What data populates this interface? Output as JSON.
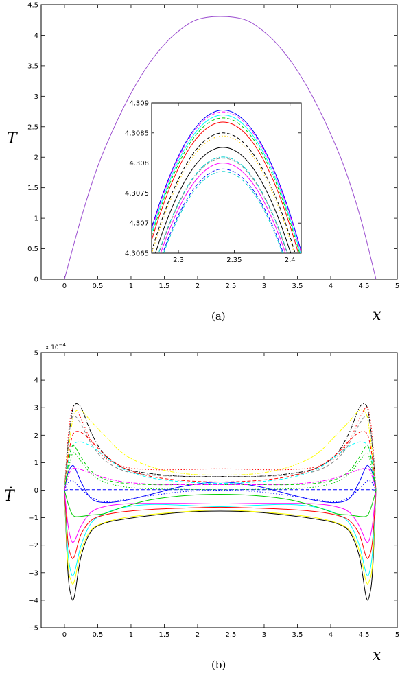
{
  "chart_data": [
    {
      "type": "line",
      "caption": "(a)",
      "ylabel": "T",
      "xlabel": "x",
      "xlim": [
        -0.35,
        5
      ],
      "ylim": [
        0,
        4.5
      ],
      "xticks": [
        "0",
        "0.5",
        "1",
        "1.5",
        "2",
        "2.5",
        "3",
        "3.5",
        "4",
        "4.5",
        "5"
      ],
      "yticks": [
        "0",
        "0.5",
        "1",
        "1.5",
        "2",
        "2.5",
        "3",
        "3.5",
        "4",
        "4.5"
      ],
      "series": [
        {
          "color": "#9a4ccf",
          "x": [
            0,
            0.25,
            0.5,
            0.75,
            1.0,
            1.25,
            1.5,
            1.75,
            2.0,
            2.34,
            2.7,
            2.95,
            3.2,
            3.45,
            3.7,
            3.95,
            4.2,
            4.45,
            4.68
          ],
          "y": [
            0,
            1.0,
            1.85,
            2.5,
            3.05,
            3.5,
            3.85,
            4.1,
            4.26,
            4.309,
            4.26,
            4.1,
            3.85,
            3.5,
            3.05,
            2.5,
            1.85,
            1.0,
            0
          ]
        }
      ],
      "inset": {
        "xlim": [
          2.276,
          2.41
        ],
        "ylim": [
          4.3065,
          4.309
        ],
        "xticks": [
          "2.3",
          "2.35",
          "2.4"
        ],
        "yticks": [
          "4.3065",
          "4.307",
          "4.3075",
          "4.308",
          "4.3085",
          "4.309"
        ],
        "peak_x": 2.34,
        "end_drop": 0.00235,
        "series": [
          {
            "peak": 4.30888,
            "color": "#0000ff",
            "dash": "solid"
          },
          {
            "peak": 4.30885,
            "color": "#ff00ff",
            "dash": "dashed"
          },
          {
            "peak": 4.3088,
            "color": "#00ffff",
            "dash": "solid"
          },
          {
            "peak": 4.30875,
            "color": "#00cc00",
            "dash": "dashed"
          },
          {
            "peak": 4.30868,
            "color": "#ff0000",
            "dash": "solid"
          },
          {
            "peak": 4.3085,
            "color": "#000000",
            "dash": "dashed"
          },
          {
            "peak": 4.30845,
            "color": "#ffcc00",
            "dash": "dotted"
          },
          {
            "peak": 4.30826,
            "color": "#000000",
            "dash": "solid"
          },
          {
            "peak": 4.3081,
            "color": "#00cccc",
            "dash": "dashdot"
          },
          {
            "peak": 4.30808,
            "color": "#888888",
            "dash": "dashed"
          },
          {
            "peak": 4.308,
            "color": "#ff00ff",
            "dash": "solid"
          },
          {
            "peak": 4.3079,
            "color": "#0000ff",
            "dash": "dashed"
          },
          {
            "peak": 4.30786,
            "color": "#00cccc",
            "dash": "dashed"
          }
        ]
      }
    },
    {
      "type": "line",
      "caption": "(b)",
      "ylabel": "Ṫ",
      "xlabel": "x",
      "exponent": "x 10",
      "exponent_power": "−4",
      "xlim": [
        -0.35,
        5
      ],
      "ylim": [
        -5,
        5
      ],
      "xticks": [
        "0",
        "0.5",
        "1",
        "1.5",
        "2",
        "2.5",
        "3",
        "3.5",
        "4",
        "4.5",
        "5"
      ],
      "yticks": [
        "−5",
        "−4",
        "−3",
        "−2",
        "−1",
        "0",
        "1",
        "2",
        "3",
        "4",
        "5"
      ],
      "x": [
        0,
        0.05,
        0.1,
        0.15,
        0.25,
        0.4,
        0.6,
        0.9,
        1.3,
        1.8,
        2.34,
        2.88,
        3.38,
        3.78,
        4.08,
        4.28,
        4.43,
        4.53,
        4.58,
        4.63,
        4.68
      ],
      "series": [
        {
          "color": "#000000",
          "dash": "solid",
          "y": [
            0,
            -2.9,
            -3.85,
            -3.85,
            -2.4,
            -1.5,
            -1.2,
            -1.05,
            -0.92,
            -0.8,
            -0.76,
            -0.8,
            -0.92,
            -1.05,
            -1.2,
            -1.5,
            -2.4,
            -3.85,
            -3.85,
            -2.9,
            0
          ]
        },
        {
          "color": "#ffff00",
          "dash": "solid",
          "y": [
            0,
            -2.6,
            -3.3,
            -3.3,
            -2.2,
            -1.45,
            -1.18,
            -1.0,
            -0.88,
            -0.78,
            -0.72,
            -0.78,
            -0.88,
            -1.0,
            -1.18,
            -1.45,
            -2.2,
            -3.3,
            -3.3,
            -2.6,
            0
          ]
        },
        {
          "color": "#00ffff",
          "dash": "solid",
          "y": [
            0,
            -2.2,
            -3.0,
            -3.0,
            -2.0,
            -1.2,
            -0.85,
            -0.62,
            -0.52,
            -0.55,
            -0.6,
            -0.55,
            -0.52,
            -0.62,
            -0.85,
            -1.2,
            -2.0,
            -3.0,
            -3.0,
            -2.2,
            0
          ]
        },
        {
          "color": "#ff0000",
          "dash": "solid",
          "y": [
            0,
            -1.8,
            -2.4,
            -2.4,
            -1.6,
            -1.1,
            -0.9,
            -0.78,
            -0.7,
            -0.65,
            -0.62,
            -0.65,
            -0.7,
            -0.78,
            -0.9,
            -1.1,
            -1.6,
            -2.4,
            -2.4,
            -1.8,
            0
          ]
        },
        {
          "color": "#ff00ff",
          "dash": "solid",
          "y": [
            0,
            -1.2,
            -1.8,
            -1.85,
            -1.3,
            -0.8,
            -0.6,
            -0.5,
            -0.48,
            -0.48,
            -0.5,
            -0.48,
            -0.48,
            -0.5,
            -0.6,
            -0.8,
            -1.3,
            -1.85,
            -1.8,
            -1.2,
            0
          ]
        },
        {
          "color": "#00cc00",
          "dash": "solid",
          "y": [
            0,
            -0.45,
            -0.8,
            -0.95,
            -0.95,
            -0.9,
            -0.85,
            -0.6,
            -0.35,
            -0.2,
            -0.15,
            -0.2,
            -0.35,
            -0.6,
            -0.85,
            -0.9,
            -0.95,
            -0.95,
            -0.8,
            -0.45,
            0
          ]
        },
        {
          "color": "#0000ff",
          "dash": "solid",
          "y": [
            0,
            0.6,
            0.85,
            0.85,
            0.3,
            -0.3,
            -0.45,
            -0.38,
            -0.15,
            0.15,
            0.3,
            0.15,
            -0.15,
            -0.38,
            -0.45,
            -0.3,
            0.3,
            0.85,
            0.85,
            0.6,
            0
          ]
        },
        {
          "color": "#0000ff",
          "dash": "dashed",
          "y": [
            0,
            0.02,
            0.02,
            0.02,
            0.02,
            0.02,
            0.02,
            0.02,
            0.02,
            0.02,
            0.02,
            0.02,
            0.02,
            0.02,
            0.02,
            0.02,
            0.02,
            0.02,
            0.02,
            0.02,
            0
          ]
        },
        {
          "color": "#0000ff",
          "dash": "dotted",
          "y": [
            0,
            0.25,
            0.35,
            0.3,
            0.05,
            -0.25,
            -0.42,
            -0.35,
            -0.2,
            -0.05,
            0.0,
            -0.05,
            -0.2,
            -0.35,
            -0.42,
            -0.25,
            0.05,
            0.3,
            0.35,
            0.25,
            0
          ]
        },
        {
          "color": "#000000",
          "dash": "dashdot",
          "y": [
            0,
            1.5,
            2.6,
            3.1,
            3.0,
            2.1,
            1.3,
            0.8,
            0.6,
            0.5,
            0.5,
            0.5,
            0.6,
            0.8,
            1.3,
            2.1,
            3.0,
            3.1,
            2.6,
            1.5,
            0
          ]
        },
        {
          "color": "#ff0000",
          "dash": "dotted",
          "y": [
            0,
            1.8,
            2.8,
            3.0,
            2.6,
            1.8,
            1.2,
            0.85,
            0.75,
            0.75,
            0.78,
            0.75,
            0.75,
            0.85,
            1.2,
            1.8,
            2.6,
            3.0,
            2.8,
            1.8,
            0
          ]
        },
        {
          "color": "#ffff00",
          "dash": "dashdot",
          "y": [
            0,
            1.2,
            2.2,
            2.8,
            2.9,
            2.5,
            2.0,
            1.3,
            0.85,
            0.6,
            0.55,
            0.6,
            0.85,
            1.3,
            2.0,
            2.5,
            2.9,
            2.8,
            2.2,
            1.2,
            0
          ]
        },
        {
          "color": "#888888",
          "dash": "dashed",
          "y": [
            0,
            1.6,
            2.5,
            2.7,
            2.4,
            1.7,
            1.1,
            0.7,
            0.55,
            0.5,
            0.5,
            0.5,
            0.55,
            0.7,
            1.1,
            1.7,
            2.4,
            2.7,
            2.5,
            1.6,
            0
          ]
        },
        {
          "color": "#ff0000",
          "dash": "dashed",
          "y": [
            0,
            1.1,
            1.8,
            2.1,
            2.1,
            1.8,
            1.3,
            0.8,
            0.5,
            0.35,
            0.3,
            0.35,
            0.5,
            0.8,
            1.3,
            1.8,
            2.1,
            2.1,
            1.8,
            1.1,
            0
          ]
        },
        {
          "color": "#00ffff",
          "dash": "dashed",
          "y": [
            0,
            0.9,
            1.5,
            1.7,
            1.75,
            1.6,
            1.25,
            0.75,
            0.45,
            0.3,
            0.25,
            0.3,
            0.45,
            0.75,
            1.25,
            1.6,
            1.75,
            1.7,
            1.5,
            0.9,
            0
          ]
        },
        {
          "color": "#00cc00",
          "dash": "dashed",
          "y": [
            0,
            0.8,
            1.5,
            1.6,
            1.2,
            0.7,
            0.4,
            0.25,
            0.2,
            0.2,
            0.2,
            0.2,
            0.2,
            0.25,
            0.4,
            0.7,
            1.2,
            1.6,
            1.5,
            0.8,
            0
          ]
        },
        {
          "color": "#00cc00",
          "dash": "dotted",
          "y": [
            0,
            0.6,
            1.2,
            1.35,
            1.05,
            0.6,
            0.3,
            0.12,
            0.05,
            0.03,
            0.02,
            0.03,
            0.05,
            0.12,
            0.3,
            0.6,
            1.05,
            1.35,
            1.2,
            0.6,
            0
          ]
        },
        {
          "color": "#ff00ff",
          "dash": "dashdot",
          "y": [
            0,
            0.45,
            0.75,
            0.8,
            0.75,
            0.62,
            0.45,
            0.3,
            0.22,
            0.2,
            0.2,
            0.2,
            0.22,
            0.3,
            0.45,
            0.62,
            0.75,
            0.8,
            0.75,
            0.45,
            0
          ]
        }
      ]
    }
  ]
}
